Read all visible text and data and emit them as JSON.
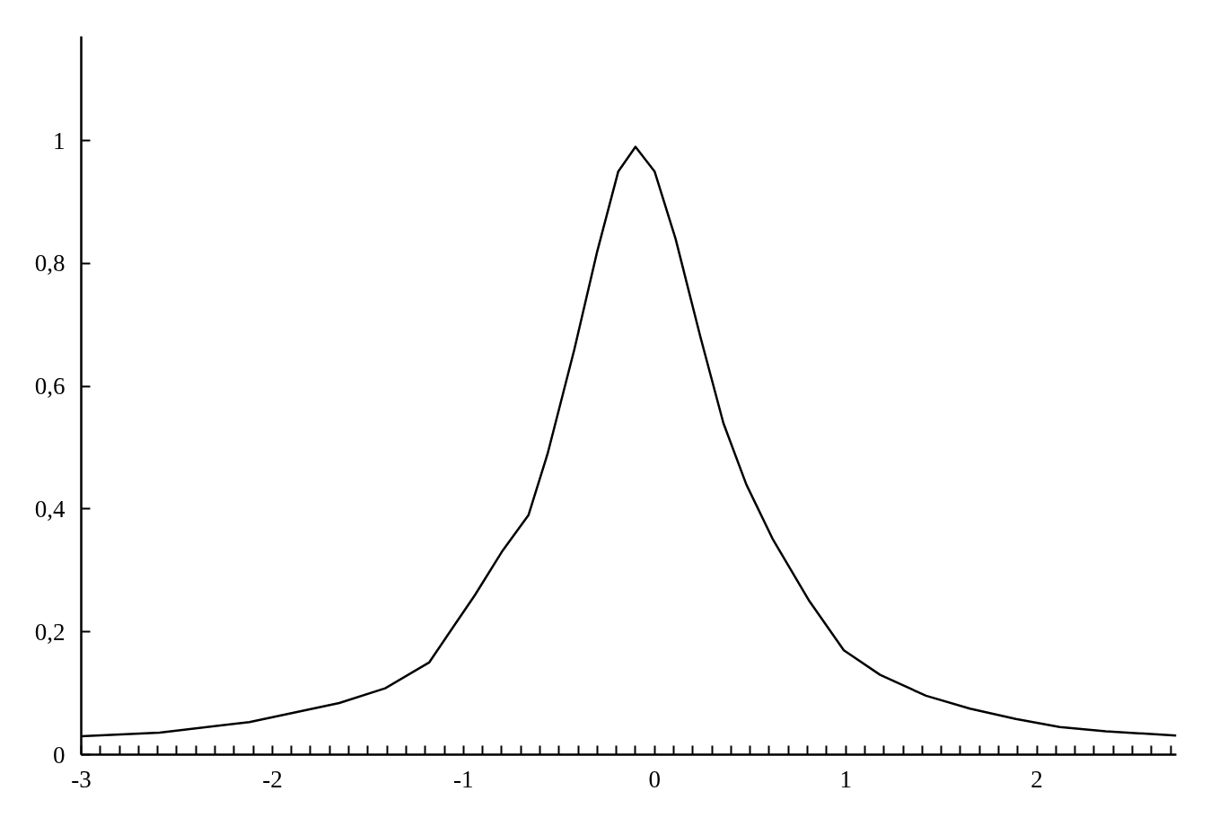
{
  "chart_data": {
    "type": "line",
    "x": [
      -3.0,
      -2.59,
      -2.12,
      -1.65,
      -1.41,
      -1.18,
      -0.94,
      -0.8,
      -0.66,
      -0.56,
      -0.42,
      -0.3,
      -0.19,
      -0.1,
      0.0,
      0.11,
      0.24,
      0.36,
      0.48,
      0.62,
      0.81,
      0.99,
      1.18,
      1.42,
      1.65,
      1.89,
      2.12,
      2.36,
      2.73
    ],
    "series": [
      {
        "color": "#000000",
        "values": [
          0.03,
          0.036,
          0.053,
          0.084,
          0.108,
          0.15,
          0.26,
          0.33,
          0.39,
          0.49,
          0.66,
          0.82,
          0.95,
          0.99,
          0.95,
          0.84,
          0.68,
          0.54,
          0.44,
          0.35,
          0.25,
          0.17,
          0.13,
          0.096,
          0.075,
          0.058,
          0.045,
          0.038,
          0.031
        ]
      }
    ],
    "xlim": [
      -3,
      2.73
    ],
    "ylim": [
      0,
      1.17
    ],
    "xticks": [
      -3,
      {
        "value": -2.9,
        "label": null
      },
      {
        "value": -2.8,
        "label": null
      },
      {
        "value": -2.7,
        "label": null
      },
      {
        "value": -2.6,
        "label": null
      },
      {
        "value": -2.5,
        "label": null
      },
      {
        "value": -2.4,
        "label": null
      },
      {
        "value": -2.3,
        "label": null
      },
      {
        "value": -2.2,
        "label": null
      },
      {
        "value": -2.1,
        "label": null
      },
      -2,
      {
        "value": -1.9,
        "label": null
      },
      {
        "value": -1.8,
        "label": null
      },
      {
        "value": -1.7,
        "label": null
      },
      {
        "value": -1.6,
        "label": null
      },
      {
        "value": -1.5,
        "label": null
      },
      {
        "value": -1.4,
        "label": null
      },
      {
        "value": -1.3,
        "label": null
      },
      {
        "value": -1.2,
        "label": null
      },
      {
        "value": -1.1,
        "label": null
      },
      -1,
      {
        "value": -0.9,
        "label": null
      },
      {
        "value": -0.8,
        "label": null
      },
      {
        "value": -0.7,
        "label": null
      },
      {
        "value": -0.6,
        "label": null
      },
      {
        "value": -0.5,
        "label": null
      },
      {
        "value": -0.4,
        "label": null
      },
      {
        "value": -0.3,
        "label": null
      },
      {
        "value": -0.2,
        "label": null
      },
      {
        "value": -0.1,
        "label": null
      },
      0,
      {
        "value": 0.1,
        "label": null
      },
      {
        "value": 0.2,
        "label": null
      },
      {
        "value": 0.3,
        "label": null
      },
      {
        "value": 0.4,
        "label": null
      },
      {
        "value": 0.5,
        "label": null
      },
      {
        "value": 0.6,
        "label": null
      },
      {
        "value": 0.7,
        "label": null
      },
      {
        "value": 0.8,
        "label": null
      },
      {
        "value": 0.9,
        "label": null
      },
      1,
      {
        "value": 1.1,
        "label": null
      },
      {
        "value": 1.2,
        "label": null
      },
      {
        "value": 1.3,
        "label": null
      },
      {
        "value": 1.4,
        "label": null
      },
      {
        "value": 1.5,
        "label": null
      },
      {
        "value": 1.6,
        "label": null
      },
      {
        "value": 1.7,
        "label": null
      },
      {
        "value": 1.8,
        "label": null
      },
      {
        "value": 1.9,
        "label": null
      },
      2,
      {
        "value": 2.1,
        "label": null
      },
      {
        "value": 2.2,
        "label": null
      },
      {
        "value": 2.3,
        "label": null
      },
      {
        "value": 2.4,
        "label": null
      },
      {
        "value": 2.5,
        "label": null
      },
      {
        "value": 2.6,
        "label": null
      },
      {
        "value": 2.7,
        "label": null
      }
    ],
    "yticks": [
      0,
      {
        "value": 0.2,
        "label": "0,2"
      },
      {
        "value": 0.4,
        "label": "0,4"
      },
      {
        "value": 0.6,
        "label": "0,6"
      },
      {
        "value": 0.8,
        "label": "0,8"
      },
      1
    ],
    "grid": false,
    "marker": "none",
    "line_style": "solid"
  }
}
